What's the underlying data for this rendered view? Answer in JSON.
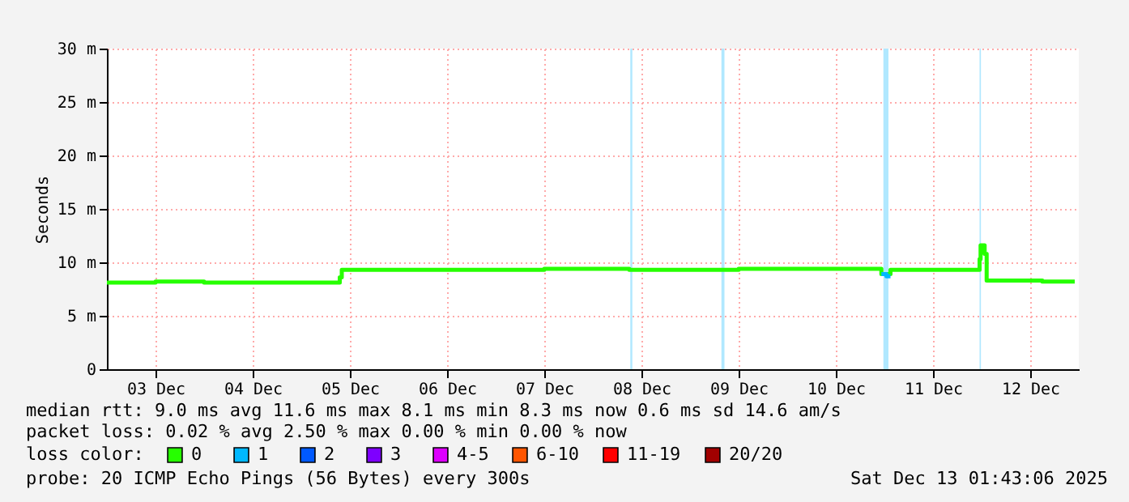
{
  "chart_data": {
    "type": "step",
    "ylabel": "Seconds",
    "xlim": [
      "2025-12-03T00:00",
      "2025-12-13T00:00"
    ],
    "xticks": [
      {
        "value": "2025-12-03T12:00",
        "label": "03 Dec"
      },
      {
        "value": "2025-12-04T12:00",
        "label": "04 Dec"
      },
      {
        "value": "2025-12-05T12:00",
        "label": "05 Dec"
      },
      {
        "value": "2025-12-06T12:00",
        "label": "06 Dec"
      },
      {
        "value": "2025-12-07T12:00",
        "label": "07 Dec"
      },
      {
        "value": "2025-12-08T12:00",
        "label": "08 Dec"
      },
      {
        "value": "2025-12-09T12:00",
        "label": "09 Dec"
      },
      {
        "value": "2025-12-10T12:00",
        "label": "10 Dec"
      },
      {
        "value": "2025-12-11T12:00",
        "label": "11 Dec"
      },
      {
        "value": "2025-12-12T12:00",
        "label": "12 Dec"
      }
    ],
    "ylim": [
      0,
      30
    ],
    "yticks": [
      0,
      {
        "value": 5,
        "label": "5 m"
      },
      {
        "value": 10,
        "label": "10 m"
      },
      {
        "value": 15,
        "label": "15 m"
      },
      {
        "value": 20,
        "label": "20 m"
      },
      {
        "value": 25,
        "label": "25 m"
      },
      {
        "value": 30,
        "label": "30 m"
      }
    ],
    "grid": true,
    "legend": "bottom",
    "legend_title": "loss color:",
    "series": [
      {
        "name": "0",
        "color": "#26ff00",
        "x": [
          "2025-12-03T00:00",
          "2025-12-03T12:00",
          "2025-12-04T00:00",
          "2025-12-05T08:00",
          "2025-12-05T09:30",
          "2025-12-05T10:00",
          "2025-12-07T12:00",
          "2025-12-08T09:00",
          "2025-12-09T12:00",
          "2025-12-10T23:15",
          "2025-12-11T01:30",
          "2025-12-11T23:30",
          "2025-12-11T23:45",
          "2025-12-12T00:45",
          "2025-12-12T01:15",
          "2025-12-12T12:00",
          "2025-12-12T15:00",
          "2025-12-12T23:00"
        ],
        "values": [
          8.1,
          8.2,
          8.1,
          8.1,
          8.6,
          9.3,
          9.4,
          9.3,
          9.4,
          8.9,
          9.3,
          10.3,
          11.6,
          10.8,
          8.3,
          8.3,
          8.2,
          8.2
        ]
      },
      {
        "name": "1",
        "color": "#00b8ff",
        "x": [
          "2025-12-10T23:15",
          "2025-12-11T00:30",
          "2025-12-11T01:30"
        ],
        "values": [
          8.9,
          8.7,
          8.7
        ]
      },
      {
        "name": "2",
        "color": "#0059ff"
      },
      {
        "name": "3",
        "color": "#7e00ff"
      },
      {
        "name": "4-5",
        "color": "#dd00ff"
      },
      {
        "name": "6-10",
        "color": "#ff5500"
      },
      {
        "name": "11-19",
        "color": "#ff0000"
      },
      {
        "name": "20/20",
        "color": "#a10000"
      }
    ],
    "bands": [
      {
        "axis": "x",
        "from": "2025-12-08T09:15",
        "to": "2025-12-08T09:45",
        "color": "#b0e8ff"
      },
      {
        "axis": "x",
        "from": "2025-12-09T07:45",
        "to": "2025-12-09T08:30",
        "color": "#b0e8ff"
      },
      {
        "axis": "x",
        "from": "2025-12-10T23:45",
        "to": "2025-12-11T01:00",
        "color": "#b0e8ff"
      },
      {
        "axis": "x",
        "from": "2025-12-11T23:30",
        "to": "2025-12-11T23:50",
        "color": "#b0e8ff"
      }
    ],
    "annotations": [
      "median rtt:  9.0 ms avg  11.6 ms max  8.1 ms min  8.3 ms now  0.6 ms sd  14.6  am/s",
      "packet loss: 0.02 % avg  2.50 % max  0.00 % min  0.00 % now",
      "probe:       20 ICMP Echo Pings (56 Bytes) every 300s",
      "Sat Dec 13 01:43:06 2025"
    ]
  }
}
